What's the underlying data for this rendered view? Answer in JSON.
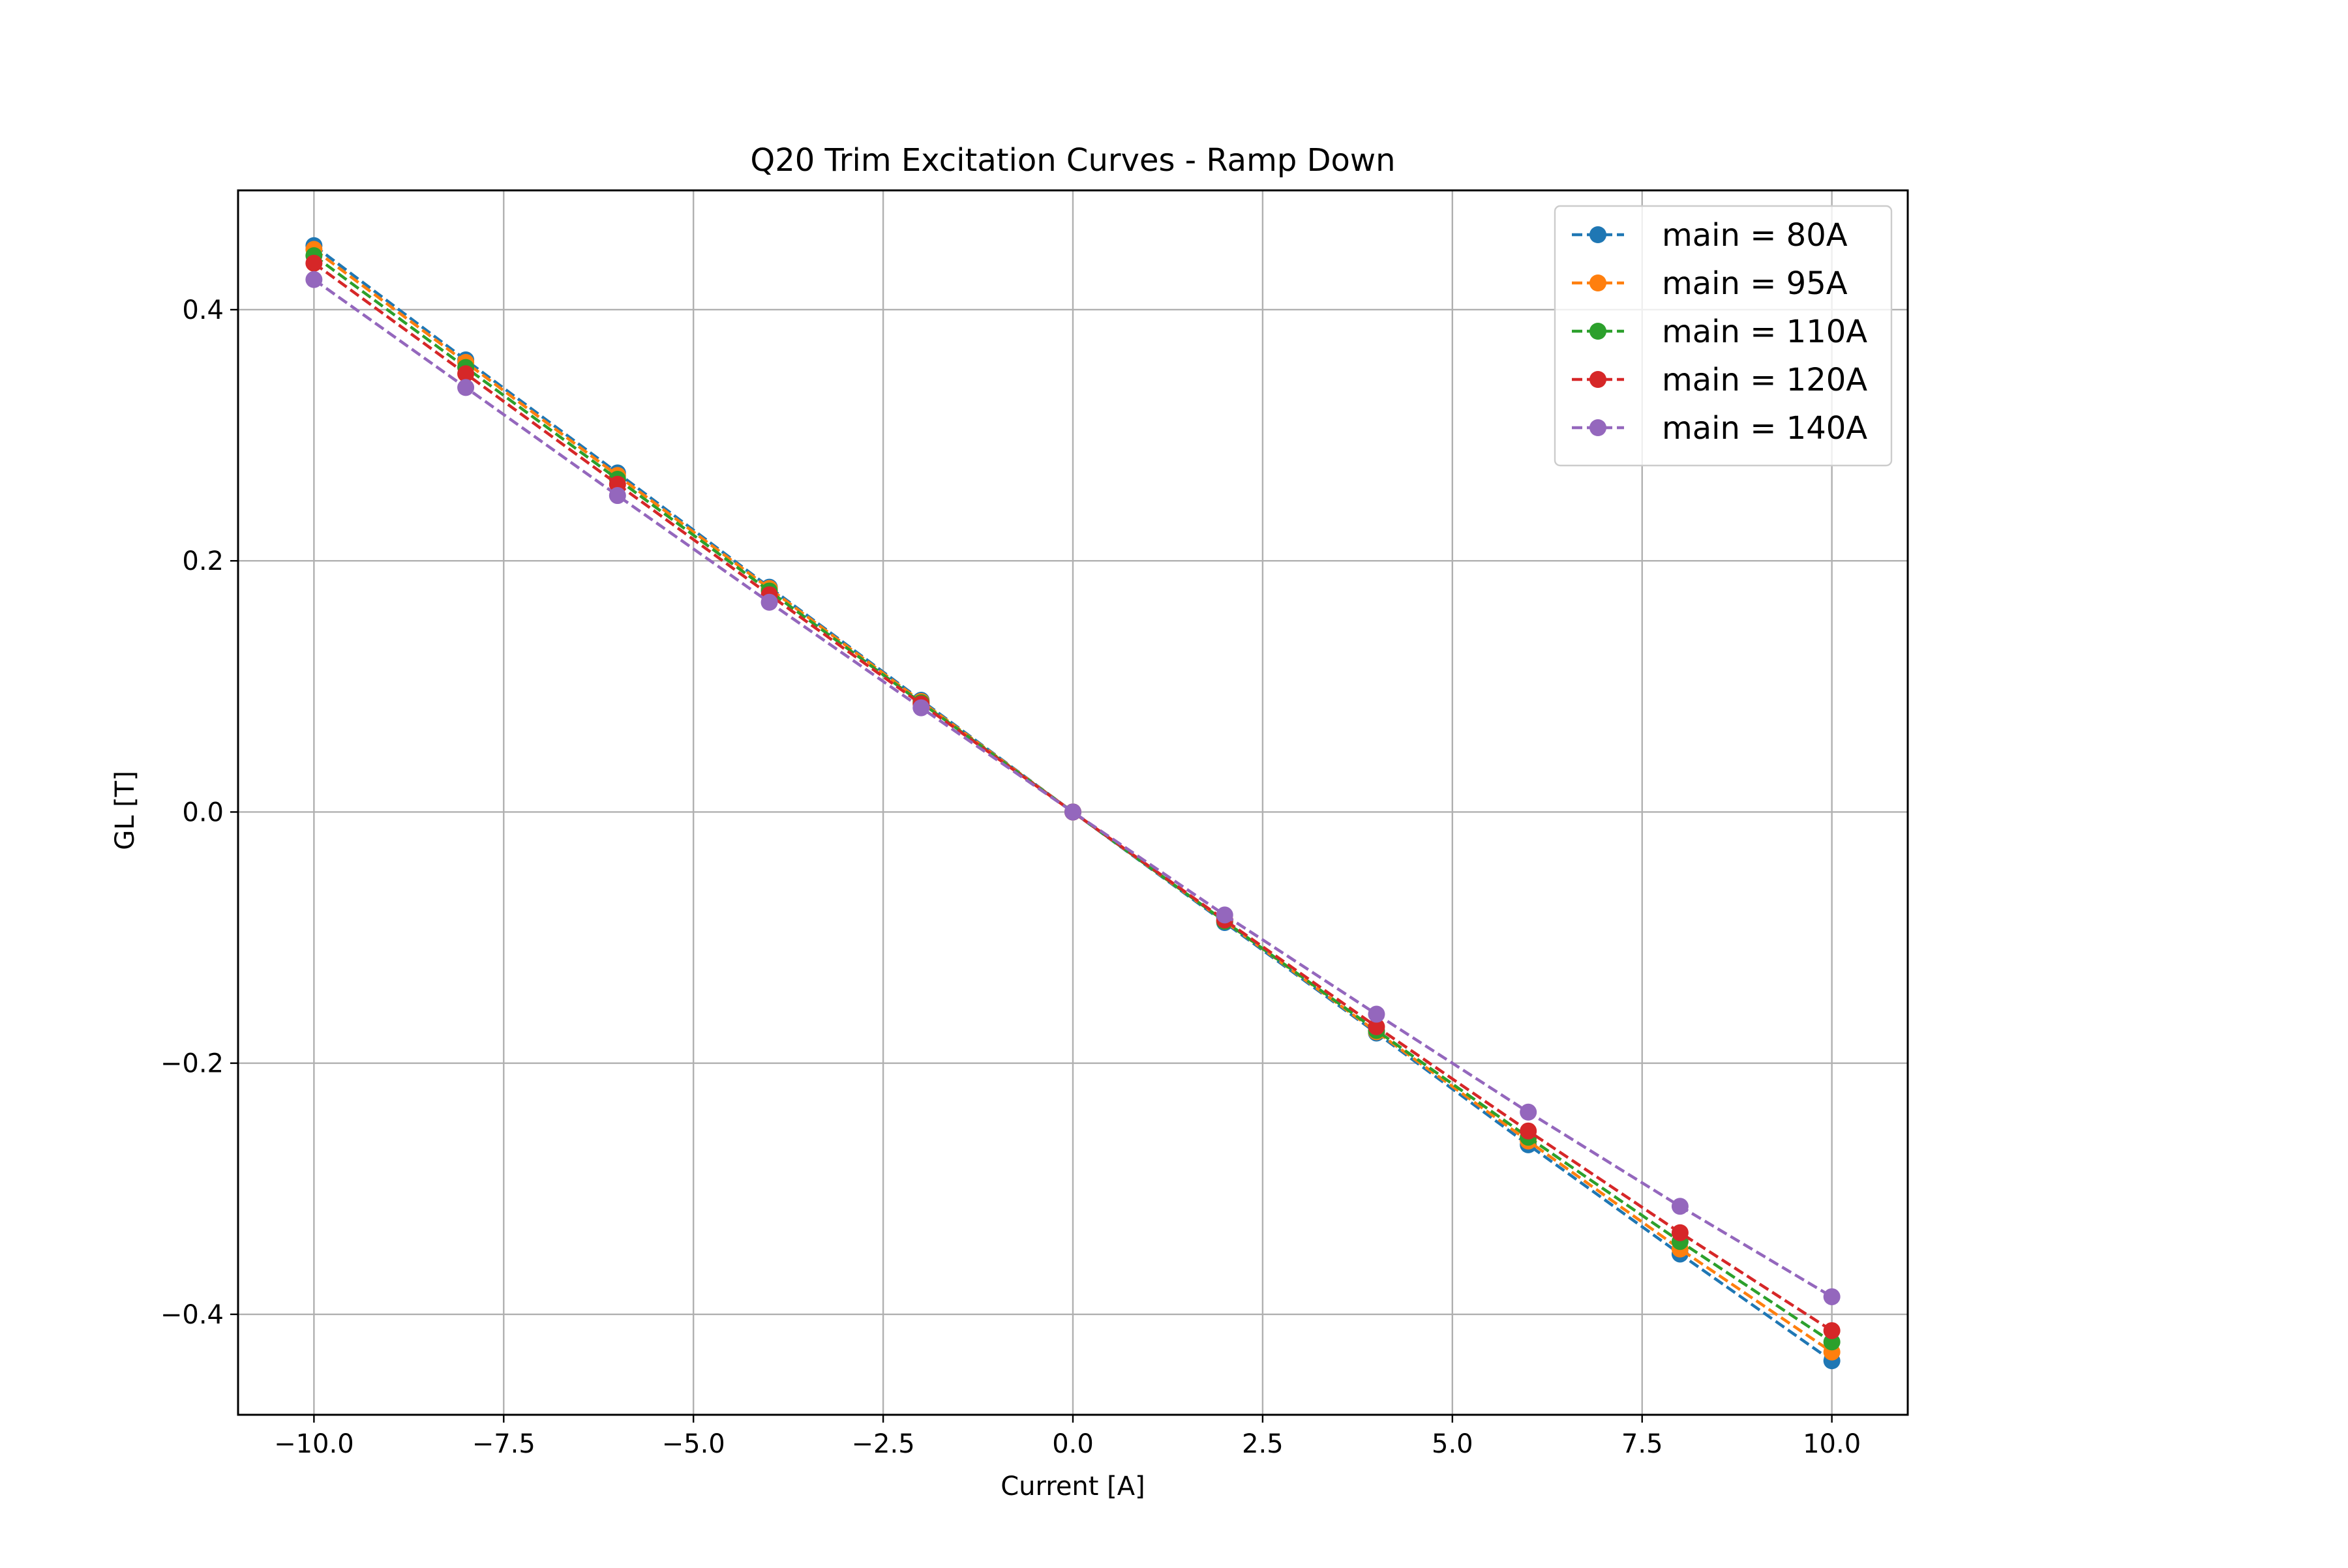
{
  "chart_data": {
    "type": "line",
    "title": "Q20 Trim Excitation Curves - Ramp Down",
    "xlabel": "Current [A]",
    "ylabel": "GL [T]",
    "xlim": [
      -11,
      11
    ],
    "ylim": [
      -0.48,
      0.495
    ],
    "grid": true,
    "legend_position": "top-right",
    "x_ticks": [
      -10.0,
      -7.5,
      -5.0,
      -2.5,
      0.0,
      2.5,
      5.0,
      7.5,
      10.0
    ],
    "x_tick_labels": [
      "−10.0",
      "−7.5",
      "−5.0",
      "−2.5",
      "0.0",
      "2.5",
      "5.0",
      "7.5",
      "10.0"
    ],
    "y_ticks": [
      0.4,
      0.2,
      0.0,
      -0.2,
      -0.4
    ],
    "y_tick_labels": [
      "0.4",
      "0.2",
      "0.0",
      "−0.2",
      "−0.4"
    ],
    "x": [
      -10,
      -8,
      -6,
      -4,
      -2,
      0,
      2,
      4,
      6,
      8,
      10
    ],
    "series": [
      {
        "name": "main = 80A",
        "color": "#1f77b4",
        "marker": "circle",
        "linestyle": "dashed",
        "values": [
          0.451,
          0.36,
          0.27,
          0.179,
          0.089,
          0.0,
          -0.088,
          -0.176,
          -0.265,
          -0.352,
          -0.437
        ]
      },
      {
        "name": "main = 95A",
        "color": "#ff7f0e",
        "marker": "circle",
        "linestyle": "dashed",
        "values": [
          0.448,
          0.358,
          0.268,
          0.178,
          0.088,
          0.0,
          -0.087,
          -0.175,
          -0.262,
          -0.348,
          -0.43
        ]
      },
      {
        "name": "main = 110A",
        "color": "#2ca02c",
        "marker": "circle",
        "linestyle": "dashed",
        "values": [
          0.443,
          0.354,
          0.265,
          0.176,
          0.087,
          0.0,
          -0.087,
          -0.174,
          -0.259,
          -0.342,
          -0.422
        ]
      },
      {
        "name": "main = 120A",
        "color": "#d62728",
        "marker": "circle",
        "linestyle": "dashed",
        "values": [
          0.437,
          0.349,
          0.261,
          0.173,
          0.086,
          0.0,
          -0.086,
          -0.171,
          -0.254,
          -0.335,
          -0.413
        ]
      },
      {
        "name": "main = 140A",
        "color": "#9467bd",
        "marker": "circle",
        "linestyle": "dashed",
        "values": [
          0.424,
          0.338,
          0.252,
          0.167,
          0.083,
          0.0,
          -0.082,
          -0.161,
          -0.239,
          -0.314,
          -0.386
        ]
      }
    ]
  }
}
